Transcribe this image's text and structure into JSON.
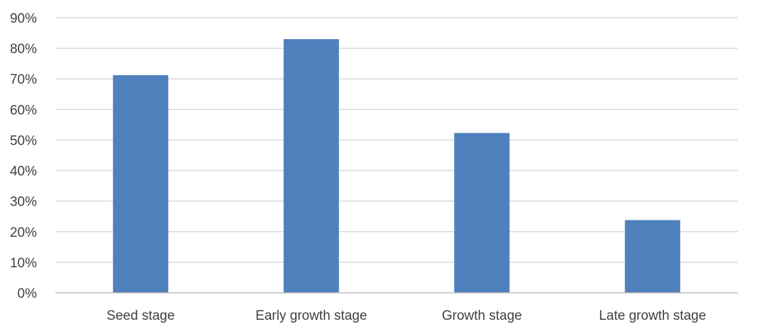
{
  "chart_data": {
    "type": "bar",
    "title": "",
    "xlabel": "",
    "ylabel": "",
    "categories": [
      "Seed stage",
      "Early growth stage",
      "Growth stage",
      "Late growth stage"
    ],
    "values": [
      0.712,
      0.83,
      0.523,
      0.238
    ],
    "ylim": [
      0,
      0.9
    ],
    "y_ticks": [
      0,
      0.1,
      0.2,
      0.3,
      0.4,
      0.5,
      0.6,
      0.7,
      0.8,
      0.9
    ],
    "y_tick_labels": [
      "0%",
      "10%",
      "20%",
      "30%",
      "40%",
      "50%",
      "60%",
      "70%",
      "80%",
      "90%"
    ],
    "grid": true,
    "legend": "none",
    "colors": {
      "bar": "#4f81bd",
      "grid": "#d9d9d9",
      "axis": "#bfbfbf",
      "text": "#404040"
    }
  }
}
